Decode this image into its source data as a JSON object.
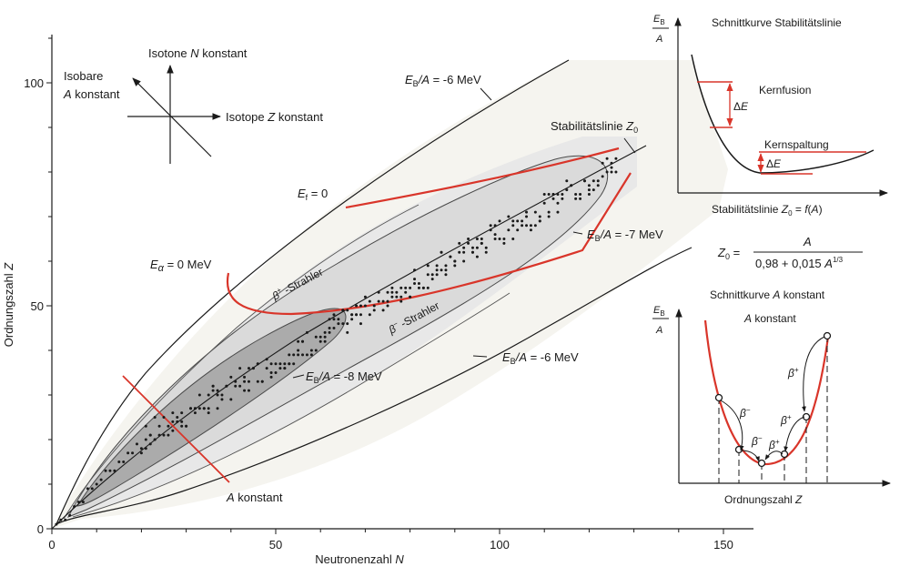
{
  "colors": {
    "red": "#d9352a",
    "ink": "#1a1a1a",
    "band_outer": "#f4f3ef",
    "band_mid": "#e6e6e6",
    "band_inner": "#d3d3d3",
    "band_core": "#a9a9a9"
  },
  "main": {
    "x_axis": {
      "label_prefix": "Neutronenzahl ",
      "label_var": "N",
      "ticks": [
        "0",
        "50",
        "100",
        "150"
      ],
      "tick_values": [
        0,
        50,
        100,
        150
      ],
      "minor_step": 10,
      "range": [
        0,
        157
      ]
    },
    "y_axis": {
      "label_prefix": "Ordnungszahl ",
      "label_var": "Z",
      "ticks": [
        "0",
        "50",
        "100"
      ],
      "tick_values": [
        0,
        50,
        100
      ],
      "minor_step": 10,
      "range": [
        0,
        110
      ]
    },
    "direction_key": {
      "isotone": {
        "prefix": "Isotone ",
        "var": "N",
        "suffix": " konstant"
      },
      "isobare_line1": "Isobare",
      "isobare_line2_var": "A",
      "isobare_line2_suffix": " konstant",
      "isotope": {
        "prefix": "Isotope ",
        "var": "Z",
        "suffix": " konstant"
      }
    },
    "labels": {
      "eb_top": {
        "var": "E",
        "sub": "B",
        "rest": "/A = -6 MeV"
      },
      "eb_bottom": {
        "var": "E",
        "sub": "B",
        "rest": "/A = -6 MeV"
      },
      "eb_minus7": {
        "var": "E",
        "sub": "B",
        "rest": "/A = -7 MeV"
      },
      "eb_minus8": {
        "var": "E",
        "sub": "B",
        "rest": "/A = -8 MeV"
      },
      "stability": {
        "text": "Stabilitätslinie ",
        "var": "Z",
        "sub": "0"
      },
      "ef": {
        "var": "E",
        "sub": "f",
        "rest": " = 0"
      },
      "ealpha": {
        "var": "E",
        "sub": "α",
        "rest": " = 0 MeV"
      },
      "beta_plus": {
        "sym": "β",
        "sup": "+",
        "rest": " -Strahler"
      },
      "beta_minus": {
        "sym": "β",
        "sup": "−",
        "rest": " -Strahler"
      },
      "a_konstant": {
        "var": "A",
        "rest": " konstant"
      }
    }
  },
  "inset_stability": {
    "title": "Schnittkurve Stabilitätslinie",
    "y_label_num": "E",
    "y_label_sub": "B",
    "y_label_den": "A",
    "kernfusion": "Kernfusion",
    "kernspaltung": "Kernspaltung",
    "delta_e": "ΔE",
    "x_caption_prefix": "Stabilitätslinie ",
    "x_caption_var": "Z",
    "x_caption_sub": "0",
    "x_caption_suffix": " = f(A)",
    "formula_lhs": "Z",
    "formula_lhs_sub": "0",
    "formula_num": "A",
    "formula_den": "0,98 + 0,015 A",
    "formula_den_sup": "1/3"
  },
  "inset_isobar": {
    "title_prefix": "Schnittkurve ",
    "title_var": "A",
    "title_suffix": " konstant",
    "subtitle_var": "A",
    "subtitle_suffix": " konstant",
    "y_label_num": "E",
    "y_label_sub": "B",
    "y_label_den": "A",
    "x_caption_prefix": "Ordnungszahl ",
    "x_caption_var": "Z",
    "decays": [
      {
        "sym": "β",
        "sup": "−"
      },
      {
        "sym": "β",
        "sup": "−"
      },
      {
        "sym": "β",
        "sup": "+"
      },
      {
        "sym": "β",
        "sup": "+"
      },
      {
        "sym": "β",
        "sup": "+"
      }
    ]
  }
}
